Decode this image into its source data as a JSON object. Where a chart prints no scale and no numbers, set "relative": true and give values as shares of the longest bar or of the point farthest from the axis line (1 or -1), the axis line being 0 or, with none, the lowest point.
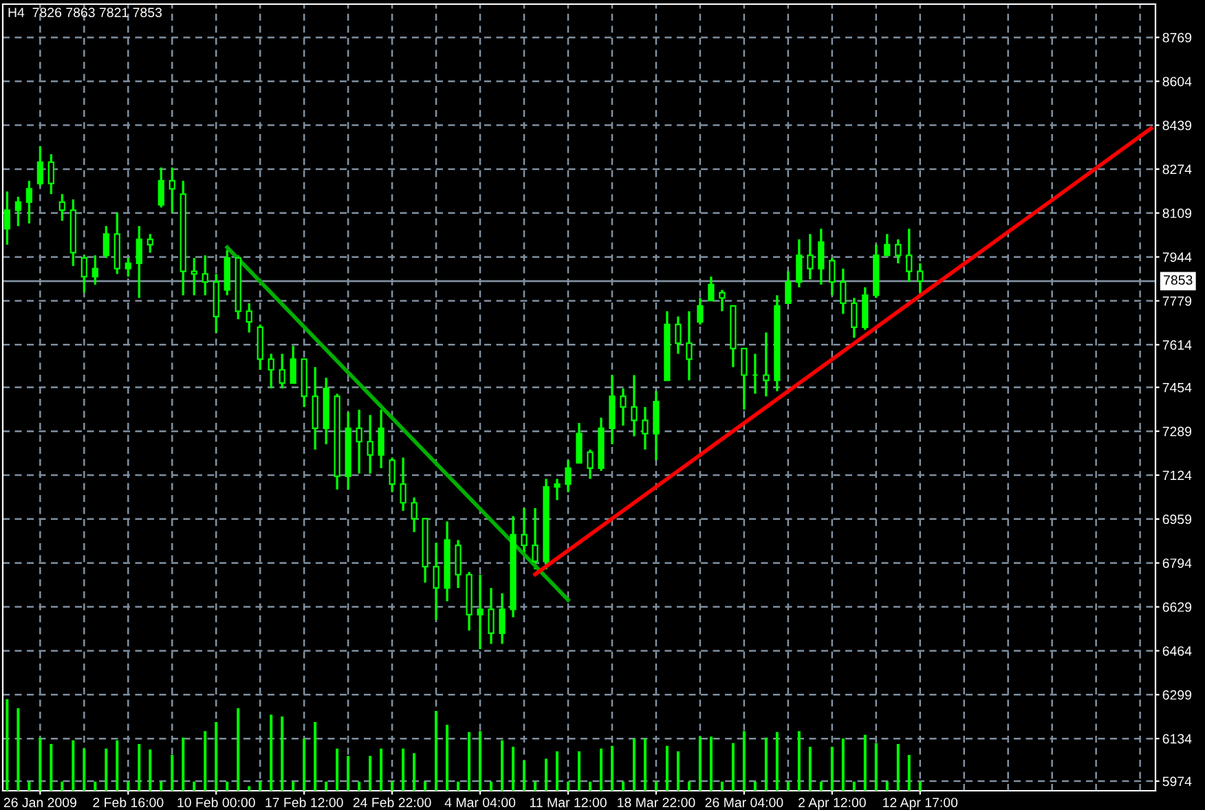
{
  "chart_data": [
    {
      "type": "candlestick",
      "title": "H4  7826 7863 7821 7853",
      "color": "#00ff00",
      "categories": [
        null,
        null,
        null,
        "26 Jan 2009",
        null,
        null,
        null,
        null,
        null,
        null,
        null,
        "2 Feb 16:00",
        null,
        null,
        null,
        null,
        null,
        null,
        null,
        "10 Feb 00:00",
        null,
        null,
        null,
        null,
        null,
        null,
        null,
        "17 Feb 12:00",
        null,
        null,
        null,
        null,
        null,
        null,
        null,
        "24 Feb 22:00",
        null,
        null,
        null,
        null,
        null,
        null,
        null,
        "4 Mar 04:00",
        null,
        null,
        null,
        null,
        null,
        null,
        null,
        "11 Mar 12:00",
        null,
        null,
        null,
        null,
        null,
        null,
        null,
        "18 Mar 22:00",
        null,
        null,
        null,
        null,
        null,
        null,
        null,
        "26 Mar 04:00",
        null,
        null,
        null,
        null,
        null,
        null,
        null,
        "2 Apr 12:00",
        null,
        null,
        null,
        null,
        null,
        null,
        null,
        "12 Apr 17:00",
        null,
        null,
        null,
        null,
        null,
        null,
        null,
        null,
        null,
        null,
        null,
        null,
        null,
        null,
        null,
        null,
        null,
        null,
        null,
        null,
        null
      ],
      "ohlc": [
        [
          8050,
          8190,
          7990,
          8120
        ],
        [
          8120,
          8170,
          8060,
          8150
        ],
        [
          8150,
          8230,
          8070,
          8200
        ],
        [
          8220,
          8360,
          8210,
          8300
        ],
        [
          8300,
          8330,
          8180,
          8220
        ],
        [
          8150,
          8180,
          8080,
          8120
        ],
        [
          8120,
          8160,
          7910,
          7960
        ],
        [
          7940,
          7950,
          7810,
          7870
        ],
        [
          7870,
          7950,
          7840,
          7900
        ],
        [
          7950,
          8060,
          7940,
          8030
        ],
        [
          8030,
          8110,
          7880,
          7900
        ],
        [
          7900,
          7940,
          7870,
          7920
        ],
        [
          7920,
          8060,
          7790,
          8010
        ],
        [
          8010,
          8030,
          7960,
          7990
        ],
        [
          8140,
          8280,
          8130,
          8230
        ],
        [
          8230,
          8280,
          8110,
          8200
        ],
        [
          8180,
          8230,
          7800,
          7890
        ],
        [
          7890,
          7940,
          7800,
          7880
        ],
        [
          7880,
          7950,
          7800,
          7850
        ],
        [
          7850,
          7880,
          7660,
          7720
        ],
        [
          7820,
          7970,
          7800,
          7940
        ],
        [
          7940,
          7950,
          7710,
          7740
        ],
        [
          7740,
          7770,
          7660,
          7700
        ],
        [
          7680,
          7690,
          7520,
          7560
        ],
        [
          7560,
          7580,
          7450,
          7520
        ],
        [
          7520,
          7580,
          7450,
          7470
        ],
        [
          7470,
          7610,
          7470,
          7560
        ],
        [
          7560,
          7560,
          7380,
          7420
        ],
        [
          7420,
          7530,
          7220,
          7300
        ],
        [
          7300,
          7490,
          7240,
          7450
        ],
        [
          7420,
          7430,
          7070,
          7120
        ],
        [
          7120,
          7360,
          7070,
          7300
        ],
        [
          7300,
          7370,
          7130,
          7250
        ],
        [
          7250,
          7350,
          7130,
          7200
        ],
        [
          7200,
          7370,
          7150,
          7300
        ],
        [
          7180,
          7190,
          7060,
          7090
        ],
        [
          7090,
          7190,
          6990,
          7020
        ],
        [
          7020,
          7040,
          6910,
          6960
        ],
        [
          6960,
          6960,
          6720,
          6780
        ],
        [
          6780,
          6870,
          6580,
          6700
        ],
        [
          6700,
          6950,
          6650,
          6880
        ],
        [
          6860,
          6880,
          6700,
          6750
        ],
        [
          6750,
          6760,
          6540,
          6600
        ],
        [
          6600,
          6750,
          6470,
          6620
        ],
        [
          6620,
          6700,
          6490,
          6530
        ],
        [
          6530,
          6680,
          6490,
          6620
        ],
        [
          6620,
          6970,
          6590,
          6900
        ],
        [
          6900,
          7000,
          6820,
          6860
        ],
        [
          6860,
          7000,
          6770,
          6800
        ],
        [
          6800,
          7110,
          6770,
          7080
        ],
        [
          7080,
          7110,
          7030,
          7090
        ],
        [
          7090,
          7180,
          7060,
          7150
        ],
        [
          7170,
          7320,
          7170,
          7280
        ],
        [
          7210,
          7220,
          7110,
          7150
        ],
        [
          7150,
          7340,
          7140,
          7300
        ],
        [
          7300,
          7500,
          7240,
          7420
        ],
        [
          7420,
          7450,
          7310,
          7380
        ],
        [
          7380,
          7500,
          7270,
          7330
        ],
        [
          7330,
          7380,
          7220,
          7280
        ],
        [
          7280,
          7440,
          7180,
          7400
        ],
        [
          7480,
          7740,
          7480,
          7690
        ],
        [
          7690,
          7720,
          7580,
          7620
        ],
        [
          7620,
          7740,
          7480,
          7560
        ],
        [
          7700,
          7790,
          7690,
          7760
        ],
        [
          7780,
          7870,
          7780,
          7840
        ],
        [
          7810,
          7820,
          7740,
          7790
        ],
        [
          7760,
          7760,
          7530,
          7600
        ],
        [
          7600,
          7600,
          7370,
          7500
        ],
        [
          7500,
          7580,
          7430,
          7500
        ],
        [
          7500,
          7660,
          7420,
          7480
        ],
        [
          7480,
          7800,
          7440,
          7760
        ],
        [
          7770,
          7890,
          7770,
          7850
        ],
        [
          7850,
          8010,
          7830,
          7950
        ],
        [
          7950,
          8030,
          7860,
          7900
        ],
        [
          7900,
          8050,
          7840,
          8000
        ],
        [
          7930,
          7940,
          7800,
          7850
        ],
        [
          7850,
          7900,
          7730,
          7770
        ],
        [
          7770,
          7790,
          7640,
          7680
        ],
        [
          7680,
          7830,
          7670,
          7800
        ],
        [
          7800,
          7990,
          7790,
          7950
        ],
        [
          7950,
          8030,
          7950,
          7990
        ],
        [
          7990,
          8010,
          7920,
          7950
        ],
        [
          7950,
          8050,
          7850,
          7890
        ],
        [
          7890,
          7920,
          7810,
          7853
        ],
        null,
        null,
        null,
        null,
        null,
        null,
        null,
        null,
        null,
        null,
        null,
        null,
        null,
        null,
        null,
        null,
        null,
        null,
        null,
        null,
        null
      ],
      "series": [
        {
          "type": "line",
          "color": "#00b000",
          "values": [
            null,
            null,
            null,
            null,
            null,
            null,
            null,
            null,
            null,
            null,
            null,
            null,
            null,
            null,
            null,
            null,
            null,
            null,
            null,
            null,
            7980,
            null,
            null,
            null,
            null,
            null,
            null,
            null,
            null,
            null,
            null,
            null,
            null,
            null,
            null,
            null,
            null,
            null,
            null,
            null,
            null,
            null,
            null,
            null,
            null,
            null,
            null,
            null,
            null,
            null,
            null,
            6655,
            null,
            null,
            null,
            null,
            null,
            null,
            null,
            null,
            null,
            null,
            null,
            null,
            null,
            null,
            null,
            null,
            null,
            null,
            null,
            null,
            null,
            null,
            null,
            null,
            null,
            null,
            null,
            null,
            null,
            null,
            null,
            null,
            null,
            null,
            null,
            null,
            null,
            null,
            null,
            null,
            null,
            null,
            null,
            null,
            null,
            null,
            null,
            null,
            null,
            null,
            null,
            null,
            null
          ]
        },
        {
          "type": "line",
          "color": "#ff0000",
          "values": [
            null,
            null,
            null,
            null,
            null,
            null,
            null,
            null,
            null,
            null,
            null,
            null,
            null,
            null,
            null,
            null,
            null,
            null,
            null,
            null,
            null,
            null,
            null,
            null,
            null,
            null,
            null,
            null,
            null,
            null,
            null,
            null,
            null,
            null,
            null,
            null,
            null,
            null,
            null,
            null,
            null,
            null,
            null,
            null,
            null,
            null,
            null,
            null,
            6751,
            null,
            null,
            null,
            null,
            null,
            null,
            null,
            null,
            null,
            null,
            null,
            null,
            null,
            null,
            null,
            null,
            null,
            null,
            null,
            null,
            null,
            null,
            null,
            null,
            null,
            null,
            null,
            null,
            null,
            null,
            null,
            null,
            null,
            null,
            null,
            null,
            null,
            null,
            null,
            null,
            null,
            null,
            null,
            null,
            null,
            null,
            null,
            null,
            null,
            null,
            null,
            null,
            null,
            null,
            null,
            8427
          ]
        }
      ],
      "ref_lines": [
        {
          "axis": "y",
          "value": 7853,
          "label": "7853",
          "color": "#8090a0"
        }
      ],
      "ylim": [
        5938,
        8894
      ],
      "yticks": [
        5974,
        6134,
        6299,
        6464,
        6629,
        6794,
        6959,
        7124,
        7289,
        7454,
        7614,
        7779,
        7944,
        8109,
        8274,
        8439,
        8604,
        8769
      ],
      "grid": true
    },
    {
      "type": "bar",
      "relative": true,
      "color": "#00ff00",
      "categories": [
        null,
        null,
        null,
        null,
        null,
        null,
        null,
        null,
        null,
        null,
        null,
        null,
        null,
        null,
        null,
        null,
        null,
        null,
        null,
        null,
        null,
        null,
        null,
        null,
        null,
        null,
        null,
        null,
        null,
        null,
        null,
        null,
        null,
        null,
        null,
        null,
        null,
        null,
        null,
        null,
        null,
        null,
        null,
        null,
        null,
        null,
        null,
        null,
        null,
        null,
        null,
        null,
        null,
        null,
        null,
        null,
        null,
        null,
        null,
        null,
        null,
        null,
        null,
        null,
        null,
        null,
        null,
        null,
        null,
        null,
        null,
        null,
        null,
        null,
        null,
        null,
        null,
        null,
        null,
        null,
        null,
        null,
        null,
        null,
        null,
        null,
        null,
        null,
        null,
        null,
        null,
        null,
        null,
        null,
        null,
        null,
        null,
        null,
        null,
        null,
        null,
        null,
        null,
        null,
        null
      ],
      "values": [
        1.0,
        0.9,
        0.1,
        0.58,
        0.51,
        0.1,
        0.55,
        0.46,
        0.1,
        0.46,
        0.55,
        0.1,
        0.51,
        0.45,
        0.1,
        0.39,
        0.58,
        0.1,
        0.65,
        0.75,
        0.1,
        0.9,
        0.05,
        0.1,
        0.83,
        0.81,
        0.1,
        0.57,
        0.75,
        0.1,
        0.46,
        0.38,
        0.1,
        0.38,
        0.46,
        0.1,
        0.46,
        0.41,
        0.1,
        0.87,
        0.72,
        0.1,
        0.64,
        0.65,
        0.1,
        0.55,
        0.48,
        0.33,
        0.1,
        0.35,
        0.43,
        0.1,
        0.43,
        0.1,
        0.46,
        0.49,
        0.1,
        0.57,
        0.57,
        0.1,
        0.49,
        0.43,
        0.1,
        0.59,
        0.59,
        0.1,
        0.52,
        0.65,
        0.1,
        0.58,
        0.64,
        0.1,
        0.65,
        0.48,
        0.1,
        0.48,
        0.57,
        0.1,
        0.61,
        0.52,
        0.1,
        0.51,
        0.39,
        0.1,
        null,
        null,
        null,
        null,
        null,
        null,
        null,
        null,
        null,
        null,
        null,
        null,
        null,
        null,
        null,
        null,
        null,
        null,
        null,
        null,
        null
      ]
    }
  ]
}
